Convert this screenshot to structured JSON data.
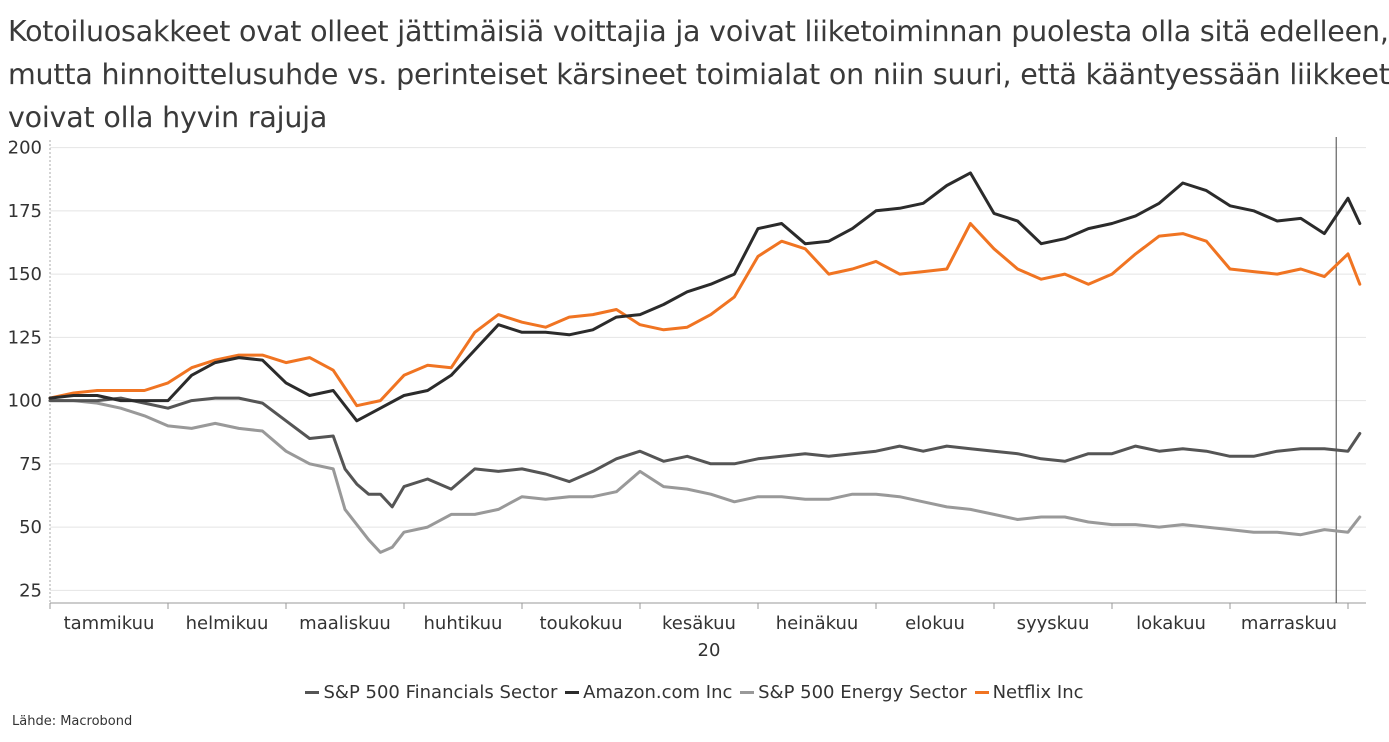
{
  "title_lines": [
    "Kotoiluosakkeet ovat olleet jättimäisiä voittajia ja voivat liiketoiminnan puolesta olla sitä edelleen,",
    "mutta hinnoittelusuhde vs. perinteiset kärsineet toimialat on niin suuri, että kääntyessään liikkeet",
    "voivat olla hyvin rajuja"
  ],
  "source": "Lähde: Macrobond",
  "chart_data": {
    "type": "line",
    "title": "Kotoiluosakkeet ovat olleet jättimäisiä voittajia ja voivat liiketoiminnan puolesta olla sitä edelleen, mutta hinnoittelusuhde vs. perinteiset kärsineet toimialat on niin suuri, että kääntyessään liikkeet voivat olla hyvin rajuja",
    "x_month_labels": [
      "tammikuu",
      "helmikuu",
      "maaliskuu",
      "huhtikuu",
      "toukokuu",
      "kesäkuu",
      "heinäkuu",
      "elokuu",
      "syyskuu",
      "lokakuu",
      "marraskuu"
    ],
    "x_year_label": "20",
    "y_ticks": [
      25,
      50,
      75,
      100,
      125,
      150,
      175,
      200
    ],
    "ylim": [
      20,
      203
    ],
    "x_month_axis": [
      0,
      11.3
    ],
    "grid": true,
    "legend_position": "bottom",
    "series": [
      {
        "name": "S&P 500 Financials Sector",
        "color": "#555555",
        "x": [
          0,
          0.2,
          0.4,
          0.6,
          0.8,
          1.0,
          1.2,
          1.4,
          1.6,
          1.8,
          2.0,
          2.2,
          2.4,
          2.5,
          2.6,
          2.7,
          2.8,
          2.9,
          3.0,
          3.2,
          3.4,
          3.6,
          3.8,
          4.0,
          4.2,
          4.4,
          4.6,
          4.8,
          5.0,
          5.2,
          5.4,
          5.6,
          5.8,
          6.0,
          6.2,
          6.4,
          6.6,
          6.8,
          7.0,
          7.2,
          7.4,
          7.6,
          7.8,
          8.0,
          8.2,
          8.4,
          8.6,
          8.8,
          9.0,
          9.2,
          9.4,
          9.6,
          9.8,
          10.0,
          10.2,
          10.4,
          10.6,
          10.8,
          11.0,
          11.1
        ],
        "values": [
          100,
          100,
          100,
          101,
          99,
          97,
          100,
          101,
          101,
          99,
          92,
          85,
          86,
          73,
          67,
          63,
          63,
          58,
          66,
          69,
          65,
          73,
          72,
          73,
          71,
          68,
          72,
          77,
          80,
          76,
          78,
          75,
          75,
          77,
          78,
          79,
          78,
          79,
          80,
          82,
          80,
          82,
          81,
          80,
          79,
          77,
          76,
          79,
          79,
          82,
          80,
          81,
          80,
          78,
          78,
          80,
          81,
          81,
          80,
          87
        ]
      },
      {
        "name": "Amazon.com Inc",
        "color": "#2b2b2b",
        "x": [
          0,
          0.2,
          0.4,
          0.6,
          0.8,
          1.0,
          1.2,
          1.4,
          1.6,
          1.8,
          2.0,
          2.2,
          2.4,
          2.6,
          2.8,
          3.0,
          3.2,
          3.4,
          3.6,
          3.8,
          4.0,
          4.2,
          4.4,
          4.6,
          4.8,
          5.0,
          5.2,
          5.4,
          5.6,
          5.8,
          6.0,
          6.2,
          6.4,
          6.6,
          6.8,
          7.0,
          7.2,
          7.4,
          7.6,
          7.8,
          8.0,
          8.2,
          8.4,
          8.6,
          8.8,
          9.0,
          9.2,
          9.4,
          9.6,
          9.8,
          10.0,
          10.2,
          10.4,
          10.6,
          10.8,
          11.0,
          11.1
        ],
        "values": [
          101,
          102,
          102,
          100,
          100,
          100,
          110,
          115,
          117,
          116,
          107,
          102,
          104,
          92,
          97,
          102,
          104,
          110,
          120,
          130,
          127,
          127,
          126,
          128,
          133,
          134,
          138,
          143,
          146,
          150,
          168,
          170,
          162,
          163,
          168,
          175,
          176,
          178,
          185,
          190,
          174,
          171,
          162,
          164,
          168,
          170,
          173,
          178,
          186,
          183,
          177,
          175,
          171,
          172,
          166,
          180,
          170
        ]
      },
      {
        "name": "S&P 500 Energy Sector",
        "color": "#999999",
        "x": [
          0,
          0.2,
          0.4,
          0.6,
          0.8,
          1.0,
          1.2,
          1.4,
          1.6,
          1.8,
          2.0,
          2.2,
          2.4,
          2.5,
          2.6,
          2.7,
          2.8,
          2.9,
          3.0,
          3.2,
          3.4,
          3.6,
          3.8,
          4.0,
          4.2,
          4.4,
          4.6,
          4.8,
          5.0,
          5.2,
          5.4,
          5.6,
          5.8,
          6.0,
          6.2,
          6.4,
          6.6,
          6.8,
          7.0,
          7.2,
          7.4,
          7.6,
          7.8,
          8.0,
          8.2,
          8.4,
          8.6,
          8.8,
          9.0,
          9.2,
          9.4,
          9.6,
          9.8,
          10.0,
          10.2,
          10.4,
          10.6,
          10.8,
          11.0,
          11.1
        ],
        "values": [
          100,
          100,
          99,
          97,
          94,
          90,
          89,
          91,
          89,
          88,
          80,
          75,
          73,
          57,
          51,
          45,
          40,
          42,
          48,
          50,
          55,
          55,
          57,
          62,
          61,
          62,
          62,
          64,
          72,
          66,
          65,
          63,
          60,
          62,
          62,
          61,
          61,
          63,
          63,
          62,
          60,
          58,
          57,
          55,
          53,
          54,
          54,
          52,
          51,
          51,
          50,
          51,
          50,
          49,
          48,
          48,
          47,
          49,
          48,
          54
        ]
      },
      {
        "name": "Netflix Inc",
        "color": "#f07422",
        "x": [
          0,
          0.2,
          0.4,
          0.6,
          0.8,
          1.0,
          1.2,
          1.4,
          1.6,
          1.8,
          2.0,
          2.2,
          2.4,
          2.6,
          2.8,
          3.0,
          3.2,
          3.4,
          3.6,
          3.8,
          4.0,
          4.2,
          4.4,
          4.6,
          4.8,
          5.0,
          5.2,
          5.4,
          5.6,
          5.8,
          6.0,
          6.2,
          6.4,
          6.6,
          6.8,
          7.0,
          7.2,
          7.4,
          7.6,
          7.8,
          8.0,
          8.2,
          8.4,
          8.6,
          8.8,
          9.0,
          9.2,
          9.4,
          9.6,
          9.8,
          10.0,
          10.2,
          10.4,
          10.6,
          10.8,
          11.0,
          11.1
        ],
        "values": [
          101,
          103,
          104,
          104,
          104,
          107,
          113,
          116,
          118,
          118,
          115,
          117,
          112,
          98,
          100,
          110,
          114,
          113,
          127,
          134,
          131,
          129,
          133,
          134,
          136,
          130,
          128,
          129,
          134,
          141,
          157,
          163,
          160,
          150,
          152,
          155,
          150,
          151,
          152,
          170,
          160,
          152,
          148,
          150,
          146,
          150,
          158,
          165,
          166,
          163,
          152,
          151,
          150,
          152,
          149,
          158,
          146
        ]
      }
    ]
  }
}
